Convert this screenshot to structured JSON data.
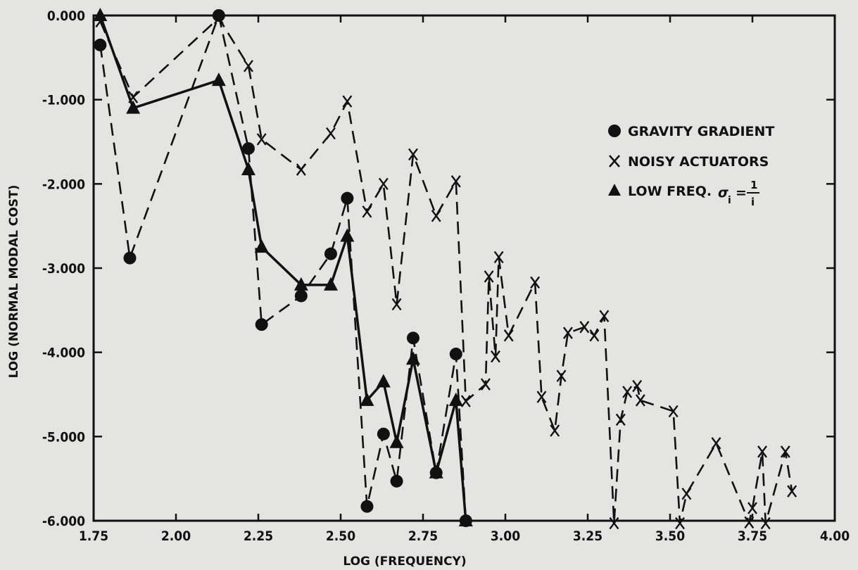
{
  "chart_data": {
    "type": "line",
    "xlabel": "LOG (FREQUENCY)",
    "ylabel": "LOG (NORMAL MODAL COST)",
    "xlim": [
      1.75,
      4.0
    ],
    "ylim": [
      -6.0,
      0.0
    ],
    "x_ticks": [
      "1.75",
      "2.00",
      "2.25",
      "2.50",
      "2.75",
      "3.00",
      "3.25",
      "3.50",
      "3.75",
      "4.00"
    ],
    "y_ticks": [
      "0.000",
      "-1.000",
      "-2.000",
      "-3.000",
      "-4.000",
      "-5.000",
      "-6.000"
    ],
    "grid": false,
    "legend_position": "upper-right",
    "legend": {
      "gravity": "GRAVITY GRADIENT",
      "noisy": "NOISY ACTUATORS",
      "low": "LOW FREQ.",
      "sigma_symbol": "σ",
      "sigma_sub": "i",
      "eq": "=",
      "frac_num": "1",
      "frac_den": "i"
    },
    "series": [
      {
        "name": "GRAVITY GRADIENT",
        "marker": "circle",
        "line": "dashed",
        "x": [
          1.77,
          1.86,
          2.13,
          2.22,
          2.26,
          2.38,
          2.47,
          2.52,
          2.58,
          2.63,
          2.67,
          2.72,
          2.79,
          2.85,
          2.88
        ],
        "y": [
          -0.35,
          -2.88,
          0.0,
          -1.58,
          -3.67,
          -3.33,
          -2.83,
          -2.17,
          -5.83,
          -4.97,
          -5.53,
          -3.83,
          -5.43,
          -4.02,
          -6.0
        ]
      },
      {
        "name": "NOISY ACTUATORS",
        "marker": "x",
        "line": "dashed",
        "x": [
          1.77,
          1.87,
          2.13,
          2.22,
          2.26,
          2.38,
          2.47,
          2.52,
          2.58,
          2.63,
          2.67,
          2.72,
          2.79,
          2.85,
          2.88,
          2.94,
          2.95,
          2.97,
          2.98,
          3.01,
          3.09,
          3.11,
          3.15,
          3.17,
          3.19,
          3.24,
          3.27,
          3.3,
          3.33,
          3.35,
          3.37,
          3.4,
          3.41,
          3.51,
          3.53,
          3.55,
          3.64,
          3.74,
          3.75,
          3.78,
          3.79,
          3.85,
          3.87
        ],
        "y": [
          -0.07,
          -0.97,
          -0.03,
          -0.6,
          -1.47,
          -1.83,
          -1.4,
          -1.02,
          -2.33,
          -2.0,
          -3.43,
          -1.65,
          -2.38,
          -1.97,
          -4.58,
          -4.38,
          -3.1,
          -4.05,
          -2.87,
          -3.8,
          -3.17,
          -4.53,
          -4.93,
          -4.28,
          -3.77,
          -3.7,
          -3.8,
          -3.57,
          -6.03,
          -4.8,
          -4.47,
          -4.4,
          -4.57,
          -4.7,
          -6.03,
          -5.68,
          -5.08,
          -6.02,
          -5.85,
          -5.18,
          -6.03,
          -5.18,
          -5.65
        ]
      },
      {
        "name": "LOW FREQ.",
        "marker": "triangle",
        "line": "solid",
        "x": [
          1.77,
          1.87,
          2.13,
          2.22,
          2.26,
          2.38,
          2.47,
          2.52,
          2.58,
          2.63,
          2.67,
          2.72,
          2.79,
          2.85,
          2.88
        ],
        "y": [
          0.0,
          -1.1,
          -0.77,
          -1.83,
          -2.75,
          -3.2,
          -3.2,
          -2.62,
          -4.57,
          -4.35,
          -5.07,
          -4.08,
          -5.43,
          -4.57,
          -6.0
        ]
      }
    ]
  }
}
